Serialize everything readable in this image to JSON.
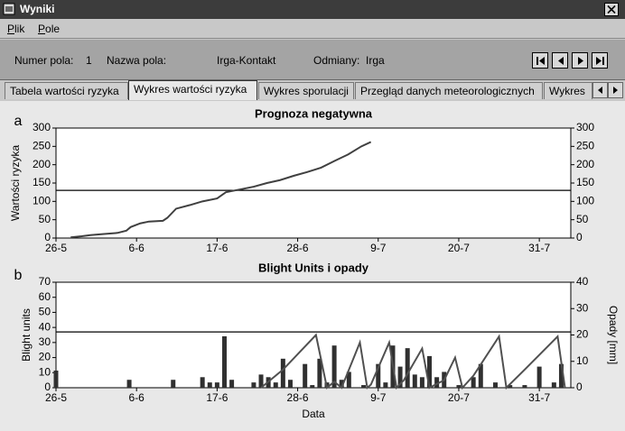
{
  "window": {
    "title": "Wyniki"
  },
  "menu": [
    "Plik",
    "Pole"
  ],
  "info": {
    "field_number_label": "Numer pola:",
    "field_number": 1,
    "field_name_label": "Nazwa pola:",
    "field_name": "Irga-Kontakt",
    "variety_label": "Odmiany:",
    "variety": "Irga"
  },
  "tabs": [
    "Tabela wartości ryzyka",
    "Wykres wartości ryzyka",
    "Wykres sporulacji",
    "Przegląd danych meteorologicznych",
    "Wykres"
  ],
  "chart_data": [
    {
      "type": "line",
      "panel_label": "a",
      "title": "Prognoza negatywna",
      "y_label": "Wartości ryzyka",
      "xlim": [
        0,
        70.3
      ],
      "xticks": [
        {
          "value": 0,
          "label": "26-5"
        },
        {
          "value": 11,
          "label": "6-6"
        },
        {
          "value": 22,
          "label": "17-6"
        },
        {
          "value": 33,
          "label": "28-6"
        },
        {
          "value": 44,
          "label": "9-7"
        },
        {
          "value": 55,
          "label": "20-7"
        },
        {
          "value": 66,
          "label": "31-7"
        }
      ],
      "ylim": [
        0,
        300
      ],
      "yticks": [
        0,
        50,
        100,
        150,
        200,
        250,
        300
      ],
      "y2lim": [
        0,
        300
      ],
      "y2ticks": [
        0,
        50,
        100,
        150,
        200,
        250,
        300
      ],
      "threshold": 130,
      "series": [
        {
          "type": "line",
          "color": "#404040",
          "x": [
            2,
            3.5,
            4.7,
            6,
            8.4,
            9.6,
            10.2,
            11.5,
            12.7,
            14.6,
            15.2,
            16.4,
            18.3,
            20,
            22,
            23.2,
            25,
            27,
            28.8,
            30.6,
            32.5,
            34.3,
            36.2,
            38,
            39.9,
            41.7,
            43
          ],
          "values": [
            2,
            5,
            8,
            10,
            14,
            20,
            30,
            40,
            45,
            47,
            55,
            80,
            90,
            100,
            108,
            125,
            132,
            140,
            150,
            158,
            170,
            180,
            192,
            210,
            228,
            250,
            262
          ]
        }
      ]
    },
    {
      "type": "combo",
      "panel_label": "b",
      "title": "Blight Units i opady",
      "x_label": "Data",
      "y_label": "Blight units",
      "y2_label": "Opady [mm]",
      "xlim": [
        0,
        70.3
      ],
      "xticks": [
        {
          "value": 0,
          "label": "26-5"
        },
        {
          "value": 11,
          "label": "6-6"
        },
        {
          "value": 22,
          "label": "17-6"
        },
        {
          "value": 33,
          "label": "28-6"
        },
        {
          "value": 44,
          "label": "9-7"
        },
        {
          "value": 55,
          "label": "20-7"
        },
        {
          "value": 66,
          "label": "31-7"
        }
      ],
      "ylim": [
        0,
        70
      ],
      "yticks": [
        0,
        10,
        20,
        30,
        40,
        50,
        60,
        70
      ],
      "y2lim": [
        0,
        40
      ],
      "y2ticks": [
        0,
        10,
        20,
        30,
        40
      ],
      "threshold": 37,
      "series": [
        {
          "type": "bar",
          "axis": "y2",
          "color": "#303030",
          "x": [
            0,
            10,
            16,
            20,
            21,
            22,
            23,
            24,
            27,
            28,
            29,
            30,
            31,
            32,
            34,
            35,
            36,
            37,
            38,
            39,
            40,
            42,
            44,
            45,
            46,
            47,
            48,
            49,
            50,
            51,
            52,
            53,
            55,
            57,
            58,
            60,
            62,
            64,
            66,
            68,
            69
          ],
          "values": [
            6.5,
            3,
            3,
            4,
            2,
            2,
            19.5,
            3,
            2,
            5,
            4,
            2,
            11,
            3,
            9,
            1,
            11,
            2,
            16,
            3,
            6,
            1,
            9,
            2,
            16,
            8,
            15,
            5,
            4,
            12,
            4,
            6,
            1,
            4,
            9,
            2,
            1,
            1,
            8,
            2,
            9
          ]
        },
        {
          "type": "line",
          "color": "#505050",
          "x": [
            28,
            31,
            35.5,
            37,
            38,
            39,
            41.5,
            42.5,
            43,
            45.5,
            46.5,
            47.5,
            50,
            51,
            53,
            54.5,
            55.5,
            57,
            60.5,
            61.5,
            64,
            68.5,
            69.5
          ],
          "values": [
            0,
            12,
            35,
            0,
            4,
            0,
            30,
            0,
            2,
            30,
            0,
            5,
            26,
            0,
            5,
            20,
            0,
            8,
            34,
            0,
            12,
            34,
            0
          ]
        }
      ]
    }
  ]
}
